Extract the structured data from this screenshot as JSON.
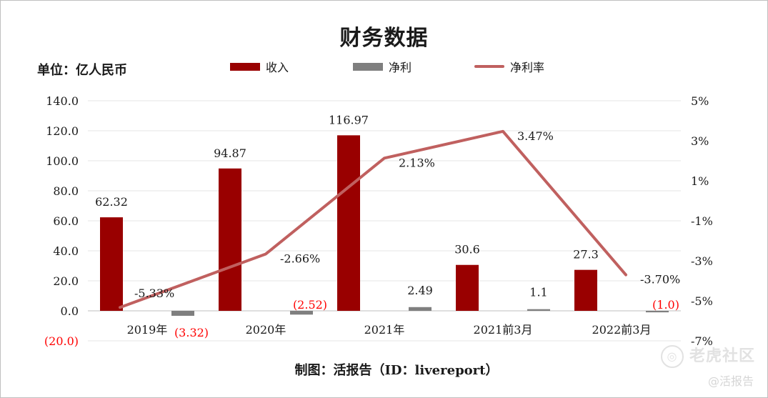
{
  "title": "财务数据",
  "unit_label": "单位：亿人民币",
  "credit": "制图：活报告（ID：livereport）",
  "watermark": {
    "brand": "老虎社区",
    "handle": "@活报告"
  },
  "legend": [
    {
      "label": "收入",
      "kind": "bar",
      "color": "#990000"
    },
    {
      "label": "净利",
      "kind": "bar",
      "color": "#7f7f7f"
    },
    {
      "label": "净利率",
      "kind": "line",
      "color": "#c0605f"
    }
  ],
  "chart_data": {
    "type": "bar",
    "categories": [
      "2019年",
      "2020年",
      "2021年",
      "2021前3月",
      "2022前3月"
    ],
    "series": [
      {
        "name": "收入",
        "type": "bar",
        "axis": "left",
        "color": "#990000",
        "values": [
          62.32,
          94.87,
          116.97,
          30.6,
          27.3
        ],
        "labels": [
          "62.32",
          "94.87",
          "116.97",
          "30.6",
          "27.3"
        ]
      },
      {
        "name": "净利",
        "type": "bar",
        "axis": "left",
        "color": "#7f7f7f",
        "values": [
          -3.32,
          -2.52,
          2.49,
          1.1,
          -1.0
        ],
        "labels": [
          "(3.32)",
          "(2.52)",
          "2.49",
          "1.1",
          "(1.0)"
        ]
      },
      {
        "name": "净利率",
        "type": "line",
        "axis": "right",
        "color": "#c0605f",
        "values": [
          -5.33,
          -2.66,
          2.13,
          3.47,
          -3.7
        ],
        "labels": [
          "-5.33%",
          "-2.66%",
          "2.13%",
          "3.47%",
          "-3.70%"
        ]
      }
    ],
    "y_left": {
      "min": -20,
      "max": 140,
      "step": 20,
      "ticks": [
        "(20.0)",
        "0.0",
        "20.0",
        "40.0",
        "60.0",
        "80.0",
        "100.0",
        "120.0",
        "140.0"
      ]
    },
    "y_right": {
      "min": -7,
      "max": 5,
      "step": 2,
      "ticks": [
        "-7%",
        "-5%",
        "-3%",
        "-1%",
        "1%",
        "3%",
        "5%"
      ]
    },
    "negative_label_color": "#ff0000",
    "text_color": "#1a1a1a"
  }
}
